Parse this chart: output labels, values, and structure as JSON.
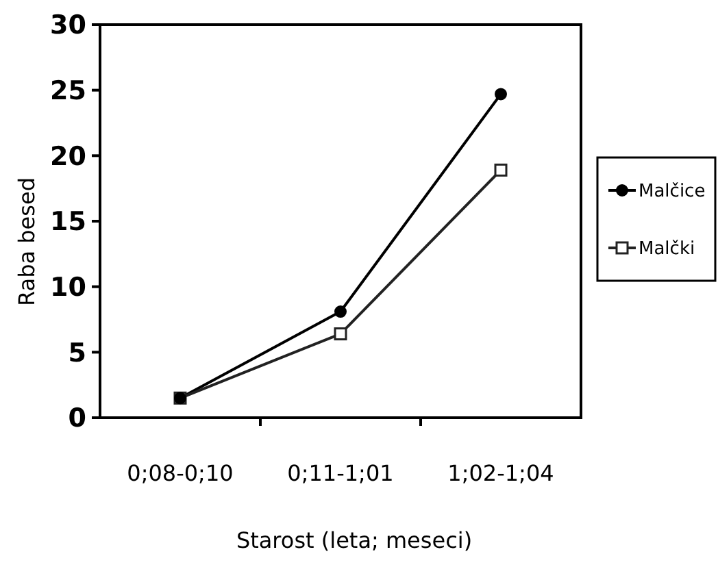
{
  "chart_data": {
    "type": "line",
    "xlabel": "Starost (leta; meseci)",
    "ylabel": "Raba besed",
    "categories": [
      "0;08-0;10",
      "0;11-1;01",
      "1;02-1;04"
    ],
    "series": [
      {
        "name": "Malčice",
        "color": "#000000",
        "marker": "circle",
        "values": [
          1.5,
          8.1,
          24.7
        ]
      },
      {
        "name": "Malčki",
        "color": "#222222",
        "marker": "square",
        "values": [
          1.5,
          6.4,
          18.9
        ]
      }
    ],
    "ylim": [
      0,
      30
    ],
    "yticks": [
      0,
      5,
      10,
      15,
      20,
      25,
      30
    ],
    "grid": false,
    "legend": "right",
    "line_style": "solid"
  }
}
